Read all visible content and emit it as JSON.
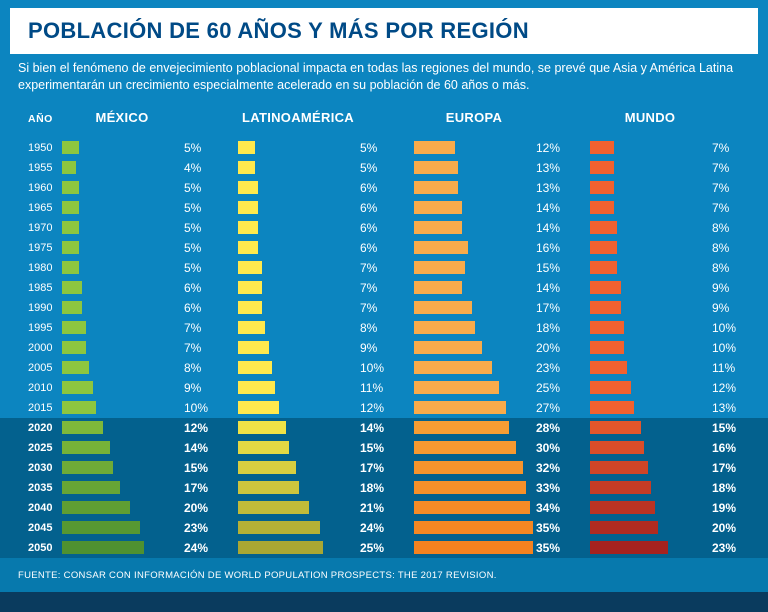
{
  "header": {
    "title": "POBLACIÓN DE 60 AÑOS Y MÁS POR REGIÓN",
    "subtitle": "Si bien el fenómeno de envejecimiento poblacional impacta en todas las regiones del mundo, se prevé que Asia y América Latina experimentarán un crecimiento especialmente acelerado en su población de 60 años o más."
  },
  "columns": {
    "year_label": "AÑO"
  },
  "footer": {
    "source": "FUENTE: CONSAR CON INFORMACIÓN DE WORLD POPULATION PROSPECTS: THE 2017 REVISION."
  },
  "colors": {
    "background": "#0c85c0",
    "projected_band": "#03618e",
    "title_band": "#ffffff",
    "title_text": "#004a86",
    "text": "#ffffff",
    "footer_band": "#0779ad",
    "bottom_strip": "#0a3b5e"
  },
  "chart_data": {
    "type": "bar",
    "orientation": "horizontal",
    "title": "POBLACIÓN DE 60 AÑOS Y MÁS POR REGIÓN",
    "unit": "%",
    "xlim": [
      0,
      35
    ],
    "categories": [
      1950,
      1955,
      1960,
      1965,
      1970,
      1975,
      1980,
      1985,
      1990,
      1995,
      2000,
      2005,
      2010,
      2015,
      2020,
      2025,
      2030,
      2035,
      2040,
      2045,
      2050
    ],
    "projected_from": 2020,
    "series": [
      {
        "name": "MÉXICO",
        "key": "mexico",
        "values": [
          5,
          4,
          5,
          5,
          5,
          5,
          5,
          6,
          6,
          7,
          7,
          8,
          9,
          10,
          12,
          14,
          15,
          17,
          20,
          23,
          24
        ],
        "color": "#8dc63f",
        "color_projected_start": "#7eb83a",
        "color_projected_end": "#4f9130"
      },
      {
        "name": "LATINOAMÉRICA",
        "key": "latinoamerica",
        "values": [
          5,
          5,
          6,
          6,
          6,
          6,
          7,
          7,
          7,
          8,
          9,
          10,
          11,
          12,
          14,
          15,
          17,
          18,
          21,
          24,
          25
        ],
        "color": "#ffe94d",
        "color_projected_start": "#f0e246",
        "color_projected_end": "#a9a733"
      },
      {
        "name": "EUROPA",
        "key": "europa",
        "values": [
          12,
          13,
          13,
          14,
          14,
          16,
          15,
          14,
          17,
          18,
          20,
          23,
          25,
          27,
          28,
          30,
          32,
          33,
          34,
          35,
          35
        ],
        "color": "#f8ab4b",
        "color_projected_start": "#f79d33",
        "color_projected_end": "#f5821f"
      },
      {
        "name": "MUNDO",
        "key": "mundo",
        "values": [
          7,
          7,
          7,
          7,
          8,
          8,
          8,
          9,
          9,
          10,
          10,
          11,
          12,
          13,
          15,
          16,
          17,
          18,
          19,
          20,
          23
        ],
        "color": "#f1612f",
        "color_projected_start": "#e4562b",
        "color_projected_end": "#a6221f"
      }
    ]
  }
}
